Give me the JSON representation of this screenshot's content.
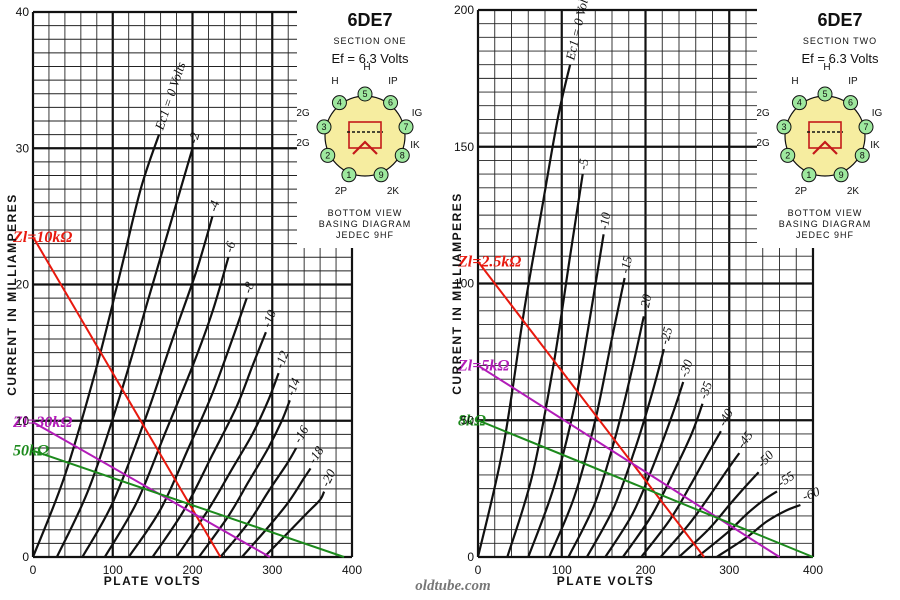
{
  "watermark": "oldtube.com",
  "chart_data": [
    {
      "type": "line",
      "title": "6DE7",
      "subtitle": "SECTION ONE",
      "heater_label": "Ef = 6.3 Volts",
      "xlabel": "PLATE VOLTS",
      "ylabel": "CURRENT IN MILLIAMPERES",
      "xlim": [
        0,
        400
      ],
      "ylim": [
        0,
        40
      ],
      "x_ticks": [
        0,
        100,
        200,
        300,
        400
      ],
      "y_ticks": [
        0,
        10,
        20,
        30,
        40
      ],
      "grid": true,
      "series": [
        {
          "name": "Ec1 = 0 Volts",
          "points": [
            [
              0,
              0
            ],
            [
              40,
              6
            ],
            [
              80,
              14
            ],
            [
              110,
              21
            ],
            [
              135,
              27
            ],
            [
              158,
              31
            ]
          ]
        },
        {
          "name": "-2",
          "points": [
            [
              30,
              0
            ],
            [
              70,
              5
            ],
            [
              110,
              12
            ],
            [
              145,
              19
            ],
            [
              175,
              25
            ],
            [
              200,
              30
            ]
          ]
        },
        {
          "name": "-4",
          "points": [
            [
              62,
              0
            ],
            [
              100,
              4
            ],
            [
              140,
              10
            ],
            [
              175,
              16
            ],
            [
              205,
              21
            ],
            [
              225,
              25
            ]
          ]
        },
        {
          "name": "-6",
          "points": [
            [
              90,
              0
            ],
            [
              130,
              4
            ],
            [
              165,
              9
            ],
            [
              200,
              14
            ],
            [
              225,
              18
            ],
            [
              245,
              22
            ]
          ]
        },
        {
          "name": "-8",
          "points": [
            [
              120,
              0
            ],
            [
              160,
              3.5
            ],
            [
              195,
              8
            ],
            [
              225,
              12
            ],
            [
              250,
              16
            ],
            [
              268,
              19
            ]
          ]
        },
        {
          "name": "-10",
          "points": [
            [
              150,
              0
            ],
            [
              190,
              3.5
            ],
            [
              225,
              7.5
            ],
            [
              255,
              11
            ],
            [
              275,
              14
            ],
            [
              292,
              16.5
            ]
          ]
        },
        {
          "name": "-12",
          "points": [
            [
              180,
              0
            ],
            [
              220,
              3.5
            ],
            [
              250,
              6.5
            ],
            [
              275,
              9
            ],
            [
              295,
              11.5
            ],
            [
              308,
              13.5
            ]
          ]
        },
        {
          "name": "-14",
          "points": [
            [
              208,
              0
            ],
            [
              245,
              3
            ],
            [
              270,
              5.5
            ],
            [
              295,
              8
            ],
            [
              312,
              10
            ],
            [
              322,
              11.5
            ]
          ]
        },
        {
          "name": "-16",
          "points": [
            [
              235,
              0
            ],
            [
              270,
              2.5
            ],
            [
              295,
              4.8
            ],
            [
              318,
              6.8
            ],
            [
              330,
              8
            ]
          ]
        },
        {
          "name": "-18",
          "points": [
            [
              262,
              0
            ],
            [
              295,
              2.2
            ],
            [
              320,
              4
            ],
            [
              340,
              5.8
            ],
            [
              348,
              6.5
            ]
          ]
        },
        {
          "name": "-20",
          "points": [
            [
              290,
              0
            ],
            [
              320,
              1.8
            ],
            [
              345,
              3.3
            ],
            [
              360,
              4.2
            ],
            [
              365,
              4.8
            ]
          ]
        }
      ],
      "load_lines": [
        {
          "name": "Zl=10kΩ",
          "color": "#e8190e",
          "points": [
            [
              0,
              23.5
            ],
            [
              235,
              0
            ]
          ]
        },
        {
          "name": "Zl=30kΩ",
          "color": "#b21cb8",
          "points": [
            [
              0,
              9.9
            ],
            [
              297,
              0
            ]
          ]
        },
        {
          "name": "50kΩ",
          "color": "#1c8a1c",
          "points": [
            [
              0,
              7.8
            ],
            [
              390,
              0
            ]
          ]
        }
      ],
      "base_diagram": {
        "caption": [
          "BOTTOM VIEW",
          "BASING DIAGRAM",
          "JEDEC 9HF"
        ],
        "pins": [
          "1",
          "2",
          "3",
          "4",
          "5",
          "6",
          "7",
          "8",
          "9"
        ],
        "roles": [
          "H",
          "H",
          "IP",
          "2G",
          "IG",
          "2G",
          "IK",
          "2P",
          "2K"
        ]
      }
    },
    {
      "type": "line",
      "title": "6DE7",
      "subtitle": "SECTION TWO",
      "heater_label": "Ef = 6.3 Volts",
      "xlabel": "PLATE VOLTS",
      "ylabel": "CURRENT IN MILLIAMPERES",
      "xlim": [
        0,
        400
      ],
      "ylim": [
        0,
        200
      ],
      "x_ticks": [
        0,
        100,
        200,
        300,
        400
      ],
      "y_ticks": [
        0,
        50,
        100,
        150,
        200
      ],
      "grid": true,
      "series": [
        {
          "name": "Ec1 = 0 Volts",
          "points": [
            [
              0,
              0
            ],
            [
              30,
              40
            ],
            [
              55,
              90
            ],
            [
              75,
              125
            ],
            [
              95,
              160
            ],
            [
              110,
              180
            ]
          ]
        },
        {
          "name": "-5",
          "points": [
            [
              35,
              0
            ],
            [
              65,
              30
            ],
            [
              90,
              70
            ],
            [
              110,
              110
            ],
            [
              125,
              140
            ]
          ]
        },
        {
          "name": "-10",
          "points": [
            [
              60,
              0
            ],
            [
              90,
              25
            ],
            [
              115,
              55
            ],
            [
              135,
              90
            ],
            [
              150,
              118
            ]
          ]
        },
        {
          "name": "-15",
          "points": [
            [
              85,
              0
            ],
            [
              115,
              22
            ],
            [
              140,
              50
            ],
            [
              160,
              80
            ],
            [
              175,
              102
            ]
          ]
        },
        {
          "name": "-20",
          "points": [
            [
              108,
              0
            ],
            [
              140,
              20
            ],
            [
              165,
              45
            ],
            [
              185,
              70
            ],
            [
              198,
              88
            ]
          ]
        },
        {
          "name": "-25",
          "points": [
            [
              130,
              0
            ],
            [
              162,
              18
            ],
            [
              188,
              40
            ],
            [
              208,
              60
            ],
            [
              222,
              76
            ]
          ]
        },
        {
          "name": "-30",
          "points": [
            [
              152,
              0
            ],
            [
              185,
              16
            ],
            [
              210,
              34
            ],
            [
              232,
              52
            ],
            [
              245,
              64
            ]
          ]
        },
        {
          "name": "-35",
          "points": [
            [
              173,
              0
            ],
            [
              207,
              15
            ],
            [
              232,
              30
            ],
            [
              255,
              45
            ],
            [
              268,
              56
            ]
          ]
        },
        {
          "name": "-40",
          "points": [
            [
              195,
              0
            ],
            [
              230,
              14
            ],
            [
              255,
              27
            ],
            [
              275,
              38
            ],
            [
              290,
              46
            ]
          ]
        },
        {
          "name": "-45",
          "points": [
            [
              218,
              0
            ],
            [
              252,
              12
            ],
            [
              278,
              23
            ],
            [
              298,
              32
            ],
            [
              312,
              38
            ]
          ]
        },
        {
          "name": "-50",
          "points": [
            [
              240,
              0
            ],
            [
              275,
              10
            ],
            [
              300,
              19
            ],
            [
              320,
              26
            ],
            [
              335,
              31
            ]
          ]
        },
        {
          "name": "-55",
          "points": [
            [
              262,
              0
            ],
            [
              298,
              9
            ],
            [
              322,
              16
            ],
            [
              342,
              21
            ],
            [
              357,
              24
            ]
          ]
        },
        {
          "name": "-60",
          "points": [
            [
              285,
              0
            ],
            [
              320,
              7
            ],
            [
              345,
              13
            ],
            [
              368,
              17
            ],
            [
              385,
              19
            ]
          ]
        }
      ],
      "load_lines": [
        {
          "name": "Zl=2.5kΩ",
          "color": "#e8190e",
          "points": [
            [
              0,
              108
            ],
            [
              270,
              0
            ]
          ]
        },
        {
          "name": "Zl=5kΩ",
          "color": "#b21cb8",
          "points": [
            [
              0,
              70
            ],
            [
              360,
              0
            ]
          ]
        },
        {
          "name": "8kΩ",
          "color": "#1c8a1c",
          "points": [
            [
              0,
              50
            ],
            [
              400,
              0
            ]
          ]
        }
      ],
      "base_diagram": {
        "caption": [
          "BOTTOM VIEW",
          "BASING DIAGRAM",
          "JEDEC 9HF"
        ],
        "pins": [
          "1",
          "2",
          "3",
          "4",
          "5",
          "6",
          "7",
          "8",
          "9"
        ],
        "roles": [
          "H",
          "H",
          "IP",
          "2G",
          "IG",
          "2G",
          "IK",
          "2P",
          "2K"
        ]
      }
    }
  ]
}
